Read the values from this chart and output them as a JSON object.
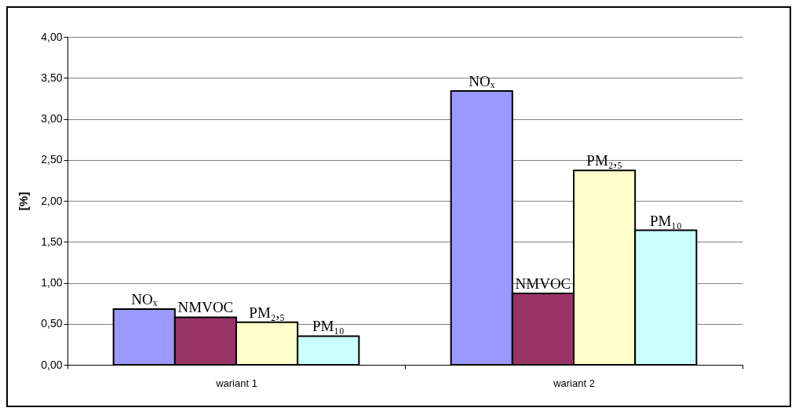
{
  "chart_data": {
    "type": "bar",
    "ylabel": "[%]",
    "categories": [
      "wariant 1",
      "wariant 2"
    ],
    "series": [
      {
        "name": "NOₓ",
        "color": "#9999ff",
        "values": [
          0.68,
          3.34
        ]
      },
      {
        "name": "NMVOC",
        "color": "#993366",
        "values": [
          0.58,
          0.87
        ]
      },
      {
        "name": "PM₂,₅",
        "color": "#ffffcc",
        "values": [
          0.52,
          2.37
        ]
      },
      {
        "name": "PM₁₀",
        "color": "#ccffff",
        "values": [
          0.35,
          1.64
        ]
      }
    ],
    "ylim": [
      0,
      4
    ],
    "yticks": [
      {
        "value": 0,
        "label": "0,00"
      },
      {
        "value": 0.5,
        "label": "0,50"
      },
      {
        "value": 1,
        "label": "1,00"
      },
      {
        "value": 1.5,
        "label": "1,50"
      },
      {
        "value": 2,
        "label": "2,00"
      },
      {
        "value": 2.5,
        "label": "2,50"
      },
      {
        "value": 3,
        "label": "3,00"
      },
      {
        "value": 3.5,
        "label": "3,50"
      },
      {
        "value": 4,
        "label": "4,00"
      }
    ],
    "grid": "y",
    "legend": false
  }
}
